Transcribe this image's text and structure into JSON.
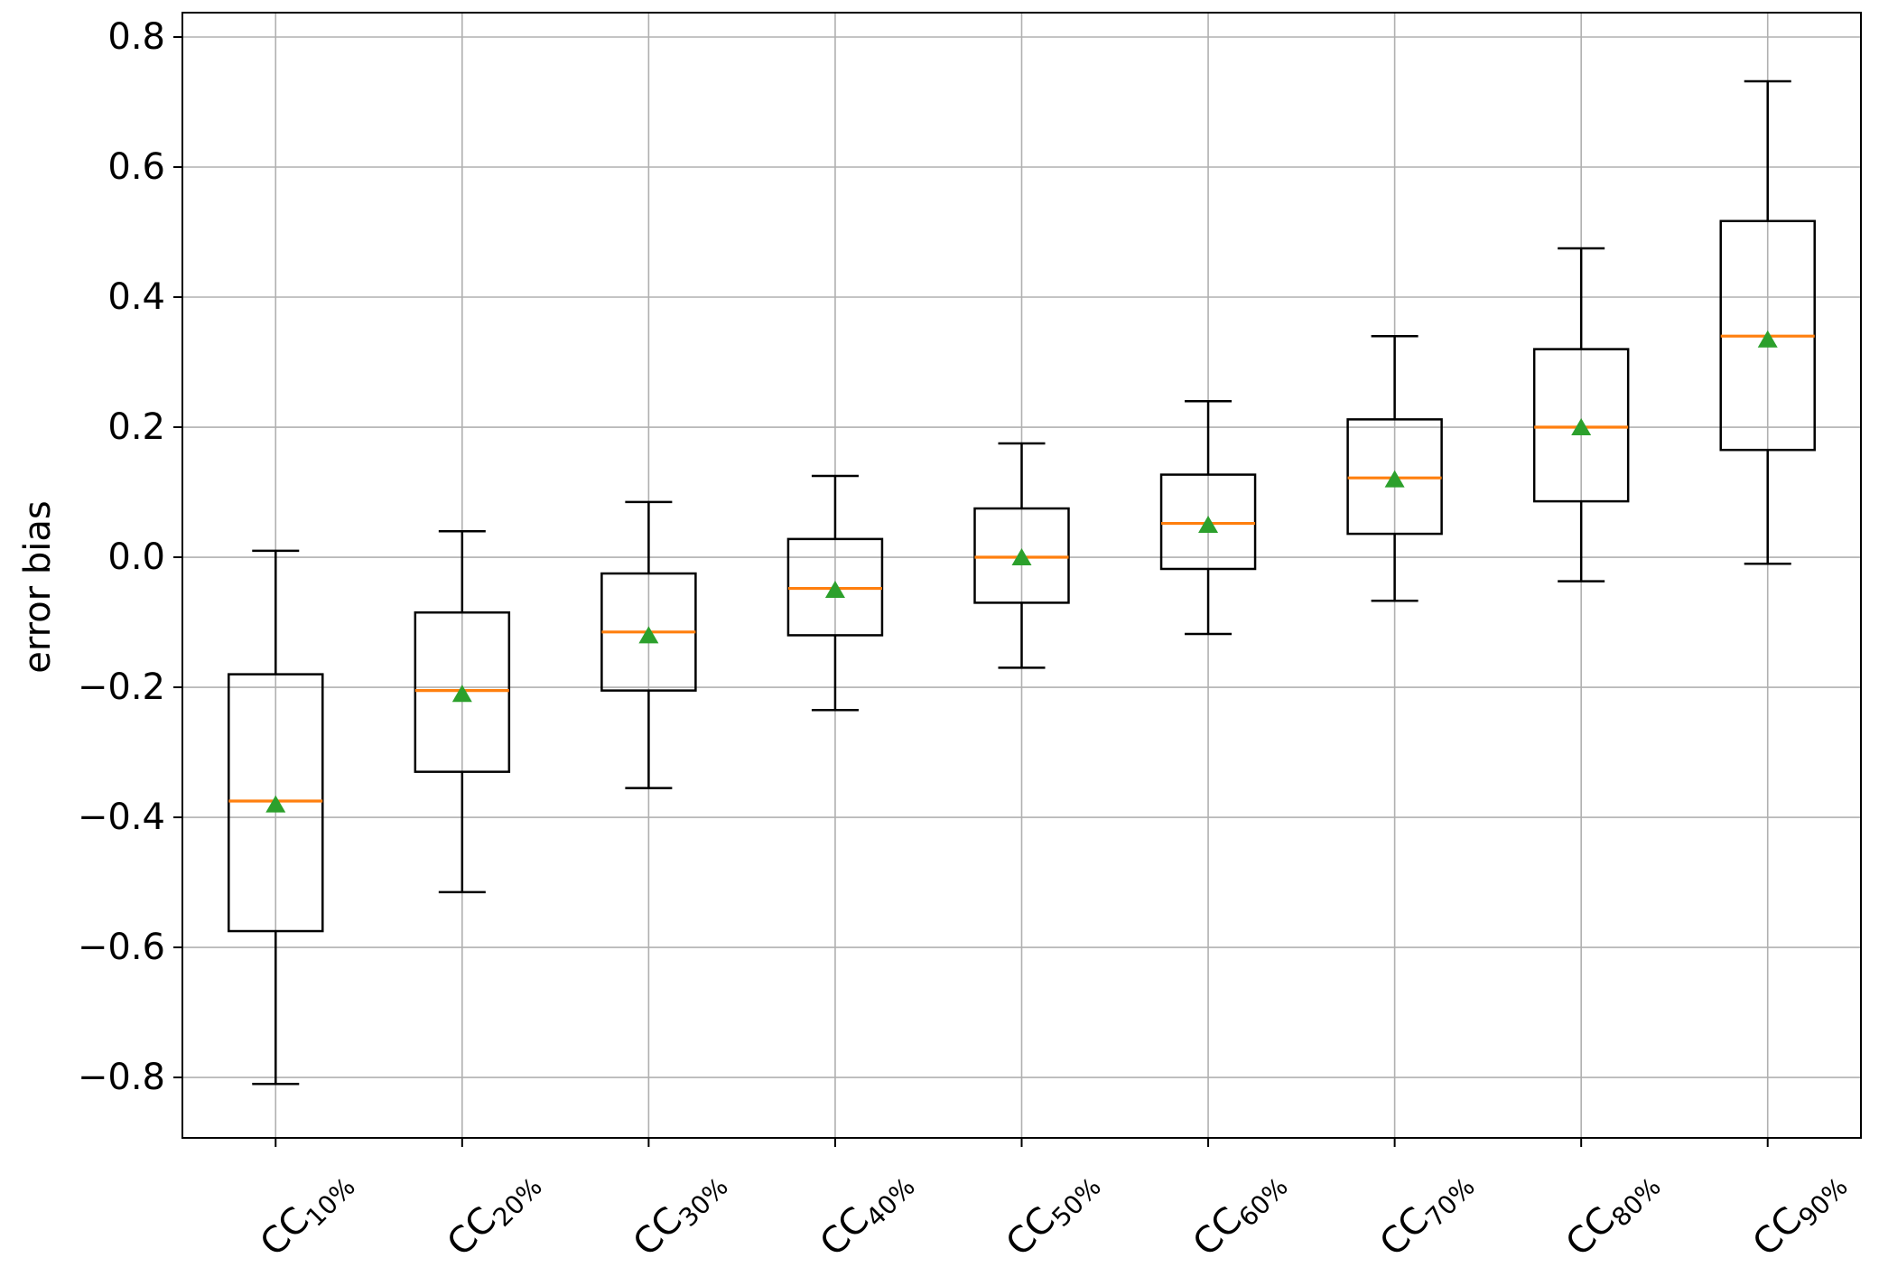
{
  "chart_data": {
    "type": "boxplot",
    "title": "",
    "xlabel": "",
    "ylabel": "error bias",
    "grid": true,
    "legend": false,
    "ylim": [
      -0.893,
      0.8375
    ],
    "yticks": [
      {
        "value": 0.8,
        "label": "0.8"
      },
      {
        "value": 0.6,
        "label": "0.6"
      },
      {
        "value": 0.4,
        "label": "0.4"
      },
      {
        "value": 0.2,
        "label": "0.2"
      },
      {
        "value": 0.0,
        "label": "0.0"
      },
      {
        "value": -0.2,
        "label": "−0.2"
      },
      {
        "value": -0.4,
        "label": "−0.4"
      },
      {
        "value": -0.6,
        "label": "−0.6"
      },
      {
        "value": -0.8,
        "label": "−0.8"
      }
    ],
    "colors": {
      "box": "#000000",
      "median": "#ff7f0e",
      "mean_marker": "#2ca02c",
      "grid": "#b0b0b0",
      "background": "#ffffff"
    },
    "categories": [
      "CC10%",
      "CC20%",
      "CC30%",
      "CC40%",
      "CC50%",
      "CC60%",
      "CC70%",
      "CC80%",
      "CC90%"
    ],
    "series": [
      {
        "label_base": "CC",
        "label_sub": "10%",
        "whisker_low": -0.81,
        "q1": -0.575,
        "median": -0.375,
        "mean": -0.38,
        "q3": -0.18,
        "whisker_high": 0.01
      },
      {
        "label_base": "CC",
        "label_sub": "20%",
        "whisker_low": -0.515,
        "q1": -0.33,
        "median": -0.205,
        "mean": -0.21,
        "q3": -0.085,
        "whisker_high": 0.04
      },
      {
        "label_base": "CC",
        "label_sub": "30%",
        "whisker_low": -0.355,
        "q1": -0.205,
        "median": -0.115,
        "mean": -0.12,
        "q3": -0.025,
        "whisker_high": 0.085
      },
      {
        "label_base": "CC",
        "label_sub": "40%",
        "whisker_low": -0.235,
        "q1": -0.12,
        "median": -0.048,
        "mean": -0.05,
        "q3": 0.028,
        "whisker_high": 0.125
      },
      {
        "label_base": "CC",
        "label_sub": "50%",
        "whisker_low": -0.17,
        "q1": -0.07,
        "median": 0.0,
        "mean": 0.0,
        "q3": 0.075,
        "whisker_high": 0.175
      },
      {
        "label_base": "CC",
        "label_sub": "60%",
        "whisker_low": -0.118,
        "q1": -0.018,
        "median": 0.052,
        "mean": 0.05,
        "q3": 0.127,
        "whisker_high": 0.24
      },
      {
        "label_base": "CC",
        "label_sub": "70%",
        "whisker_low": -0.067,
        "q1": 0.036,
        "median": 0.122,
        "mean": 0.12,
        "q3": 0.212,
        "whisker_high": 0.34
      },
      {
        "label_base": "CC",
        "label_sub": "80%",
        "whisker_low": -0.037,
        "q1": 0.086,
        "median": 0.2,
        "mean": 0.2,
        "q3": 0.32,
        "whisker_high": 0.475
      },
      {
        "label_base": "CC",
        "label_sub": "90%",
        "whisker_low": -0.01,
        "q1": 0.165,
        "median": 0.34,
        "mean": 0.335,
        "q3": 0.517,
        "whisker_high": 0.732
      }
    ]
  }
}
